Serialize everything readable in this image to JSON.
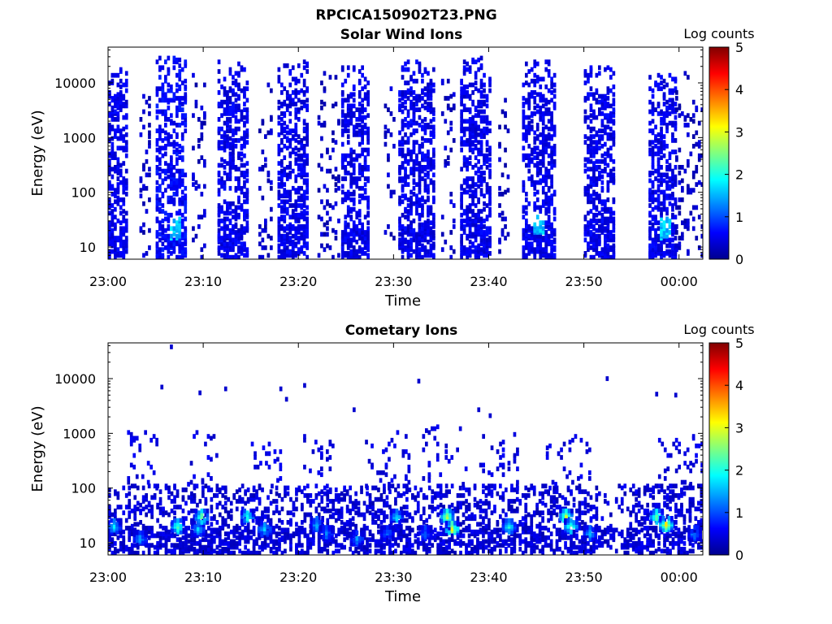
{
  "figure": {
    "title": "RPCICA150902T23.PNG"
  },
  "chart_data": [
    {
      "type": "heatmap",
      "title": "Solar Wind Ions",
      "xlabel": "Time",
      "ylabel": "Energy (eV)",
      "xticks": [
        "23:00",
        "23:10",
        "23:20",
        "23:30",
        "23:40",
        "23:50",
        "00:00"
      ],
      "xlim_minutes_after_2300": [
        0,
        62.5
      ],
      "yscale": "log",
      "ylim": [
        6,
        45000
      ],
      "yticks": [
        "10",
        "100",
        "1000",
        "10000"
      ],
      "colorbar": {
        "label": "Log counts",
        "min": 0,
        "max": 5,
        "ticks": [
          "0",
          "1",
          "2",
          "3",
          "4",
          "5"
        ]
      },
      "bursts": [
        {
          "start": 0.0,
          "end": 2.0,
          "e_top": 20000,
          "level": 0.3
        },
        {
          "start": 3.3,
          "end": 4.4,
          "e_top": 10000,
          "level": 0.1,
          "sparse": true
        },
        {
          "start": 5.0,
          "end": 8.2,
          "e_top": 30000,
          "level": 0.4,
          "hot_min": 7.0,
          "hot_e": 22,
          "hot_level": 1.3
        },
        {
          "start": 8.8,
          "end": 10.2,
          "e_top": 15000,
          "level": 0.1,
          "sparse": true
        },
        {
          "start": 11.5,
          "end": 14.6,
          "e_top": 25000,
          "level": 0.3
        },
        {
          "start": 15.8,
          "end": 17.0,
          "e_top": 15000,
          "level": 0.1,
          "sparse": true
        },
        {
          "start": 17.8,
          "end": 21.0,
          "e_top": 25000,
          "level": 0.3
        },
        {
          "start": 22.0,
          "end": 24.2,
          "e_top": 15000,
          "level": 0.1,
          "sparse": true
        },
        {
          "start": 24.5,
          "end": 27.4,
          "e_top": 20000,
          "level": 0.3
        },
        {
          "start": 29.0,
          "end": 30.0,
          "e_top": 15000,
          "level": 0.1,
          "sparse": true
        },
        {
          "start": 30.5,
          "end": 34.2,
          "e_top": 25000,
          "level": 0.3
        },
        {
          "start": 35.0,
          "end": 36.2,
          "e_top": 12000,
          "level": 0.1,
          "sparse": true
        },
        {
          "start": 37.0,
          "end": 40.2,
          "e_top": 30000,
          "level": 0.3
        },
        {
          "start": 41.0,
          "end": 42.0,
          "e_top": 10000,
          "level": 0.1,
          "sparse": true
        },
        {
          "start": 43.5,
          "end": 47.0,
          "e_top": 25000,
          "level": 0.3,
          "hot_min": 45.0,
          "hot_e": 25,
          "hot_level": 1.2
        },
        {
          "start": 50.0,
          "end": 53.0,
          "e_top": 20000,
          "level": 0.3
        },
        {
          "start": 56.8,
          "end": 59.6,
          "e_top": 15000,
          "level": 0.3,
          "hot_min": 58.5,
          "hot_e": 22,
          "hot_level": 1.3
        },
        {
          "start": 59.6,
          "end": 62.5,
          "e_top": 15000,
          "level": 0.1,
          "sparse": true
        }
      ]
    },
    {
      "type": "heatmap",
      "title": "Cometary Ions",
      "xlabel": "Time",
      "ylabel": "Energy (eV)",
      "xticks": [
        "23:00",
        "23:10",
        "23:20",
        "23:30",
        "23:40",
        "23:50",
        "00:00"
      ],
      "xlim_minutes_after_2300": [
        0,
        62.5
      ],
      "yscale": "log",
      "ylim": [
        6,
        45000
      ],
      "yticks": [
        "10",
        "100",
        "1000",
        "10000"
      ],
      "colorbar": {
        "label": "Log counts",
        "min": 0,
        "max": 5,
        "ticks": [
          "0",
          "1",
          "2",
          "3",
          "4",
          "5"
        ]
      },
      "hotspots": [
        {
          "t": 0.5,
          "e": 20,
          "level": 1.6
        },
        {
          "t": 3.2,
          "e": 12,
          "level": 1.2
        },
        {
          "t": 7.2,
          "e": 20,
          "level": 2.2
        },
        {
          "t": 9.3,
          "e": 18,
          "level": 1.5
        },
        {
          "t": 9.7,
          "e": 30,
          "level": 2.4
        },
        {
          "t": 14.5,
          "e": 30,
          "level": 2.0
        },
        {
          "t": 16.3,
          "e": 18,
          "level": 1.6
        },
        {
          "t": 21.8,
          "e": 22,
          "level": 1.4
        },
        {
          "t": 22.8,
          "e": 15,
          "level": 1.1
        },
        {
          "t": 26.0,
          "e": 12,
          "level": 1.2
        },
        {
          "t": 29.2,
          "e": 15,
          "level": 1.0
        },
        {
          "t": 30.2,
          "e": 30,
          "level": 1.6
        },
        {
          "t": 33.2,
          "e": 15,
          "level": 1.0
        },
        {
          "t": 35.5,
          "e": 30,
          "level": 2.8
        },
        {
          "t": 36.0,
          "e": 18,
          "level": 3.0
        },
        {
          "t": 42.0,
          "e": 20,
          "level": 1.8
        },
        {
          "t": 48.0,
          "e": 30,
          "level": 3.0
        },
        {
          "t": 48.5,
          "e": 20,
          "level": 2.2
        },
        {
          "t": 50.5,
          "e": 15,
          "level": 1.4
        },
        {
          "t": 57.5,
          "e": 30,
          "level": 2.4
        },
        {
          "t": 58.5,
          "e": 22,
          "level": 3.0
        },
        {
          "t": 61.5,
          "e": 15,
          "level": 1.2
        }
      ],
      "scatter_bursts": [
        {
          "start": 2.0,
          "end": 5.0,
          "e_top": 1300
        },
        {
          "start": 8.0,
          "end": 11.5,
          "e_top": 1200
        },
        {
          "start": 15.0,
          "end": 18.0,
          "e_top": 700
        },
        {
          "start": 20.5,
          "end": 24.0,
          "e_top": 1100
        },
        {
          "start": 27.0,
          "end": 31.5,
          "e_top": 1100
        },
        {
          "start": 33.0,
          "end": 37.5,
          "e_top": 1400
        },
        {
          "start": 39.0,
          "end": 43.0,
          "e_top": 1000
        },
        {
          "start": 46.0,
          "end": 50.5,
          "e_top": 900
        },
        {
          "start": 57.5,
          "end": 62.5,
          "e_top": 900
        }
      ],
      "isolated_points": [
        {
          "t": 6.5,
          "e": 38000
        },
        {
          "t": 5.5,
          "e": 7000
        },
        {
          "t": 9.5,
          "e": 5500
        },
        {
          "t": 12.2,
          "e": 6500
        },
        {
          "t": 18.0,
          "e": 6500
        },
        {
          "t": 18.6,
          "e": 4200
        },
        {
          "t": 20.5,
          "e": 7500
        },
        {
          "t": 25.7,
          "e": 2700
        },
        {
          "t": 32.5,
          "e": 9000
        },
        {
          "t": 38.8,
          "e": 2700
        },
        {
          "t": 40.0,
          "e": 2100
        },
        {
          "t": 52.3,
          "e": 10000
        },
        {
          "t": 57.5,
          "e": 5200
        },
        {
          "t": 59.5,
          "e": 5000
        }
      ]
    }
  ]
}
